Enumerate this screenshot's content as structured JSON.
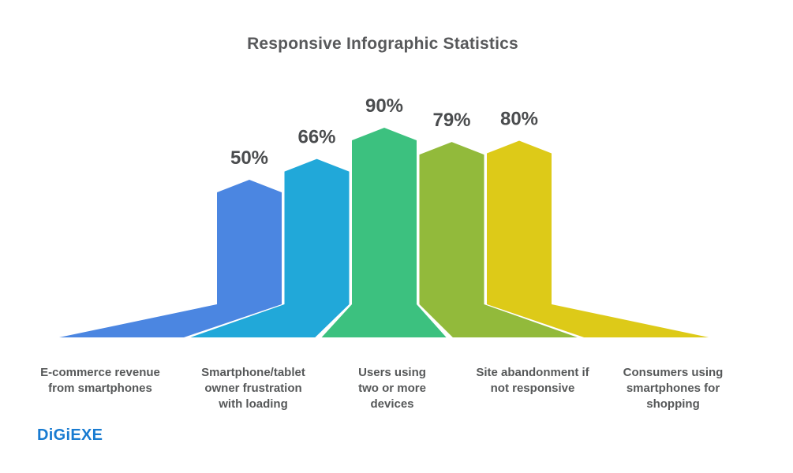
{
  "title": "Responsive Infographic Statistics",
  "footer": {
    "logo_text": "DiGiEXE",
    "logo_color": "#187bd1"
  },
  "chart_data": {
    "type": "bar",
    "title": "Responsive Infographic Statistics",
    "categories": [
      "E-commerce revenue from smartphones",
      "Smartphone/tablet owner frustration with loading",
      "Users using two or more devices",
      "Site abandonment if not responsive",
      "Consumers using smartphones for shopping"
    ],
    "category_lines": [
      [
        "E-commerce revenue",
        "from smartphones"
      ],
      [
        "Smartphone/tablet",
        "owner frustration",
        "with loading"
      ],
      [
        "Users using",
        "two or more",
        "devices"
      ],
      [
        "Site abandonment if",
        "not responsive"
      ],
      [
        "Consumers using",
        "smartphones for",
        "shopping"
      ]
    ],
    "values": [
      50,
      66,
      90,
      79,
      80
    ],
    "value_labels": [
      "50%",
      "66%",
      "90%",
      "79%",
      "80%"
    ],
    "unit": "%",
    "ylim": [
      0,
      100
    ],
    "grid": false,
    "legend": "none",
    "bar_colors": [
      "#4b86e1",
      "#21a8d9",
      "#3cc17f",
      "#92ba3b",
      "#ddca18"
    ],
    "value_label_color": "#4a4c4e",
    "category_label_color": "#565859",
    "title_color": "#58595b",
    "background": "#ffffff",
    "bar_style": "pentagon-top with perspective floor fan"
  }
}
